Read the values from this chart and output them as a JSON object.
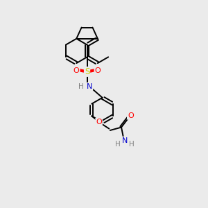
{
  "background_color": "#ebebeb",
  "bond_color": "#000000",
  "atom_colors": {
    "O": "#ff0000",
    "N": "#0000cd",
    "S": "#cccc00",
    "C": "#000000",
    "H": "#808080"
  },
  "figsize": [
    3.0,
    3.0
  ],
  "dpi": 100
}
